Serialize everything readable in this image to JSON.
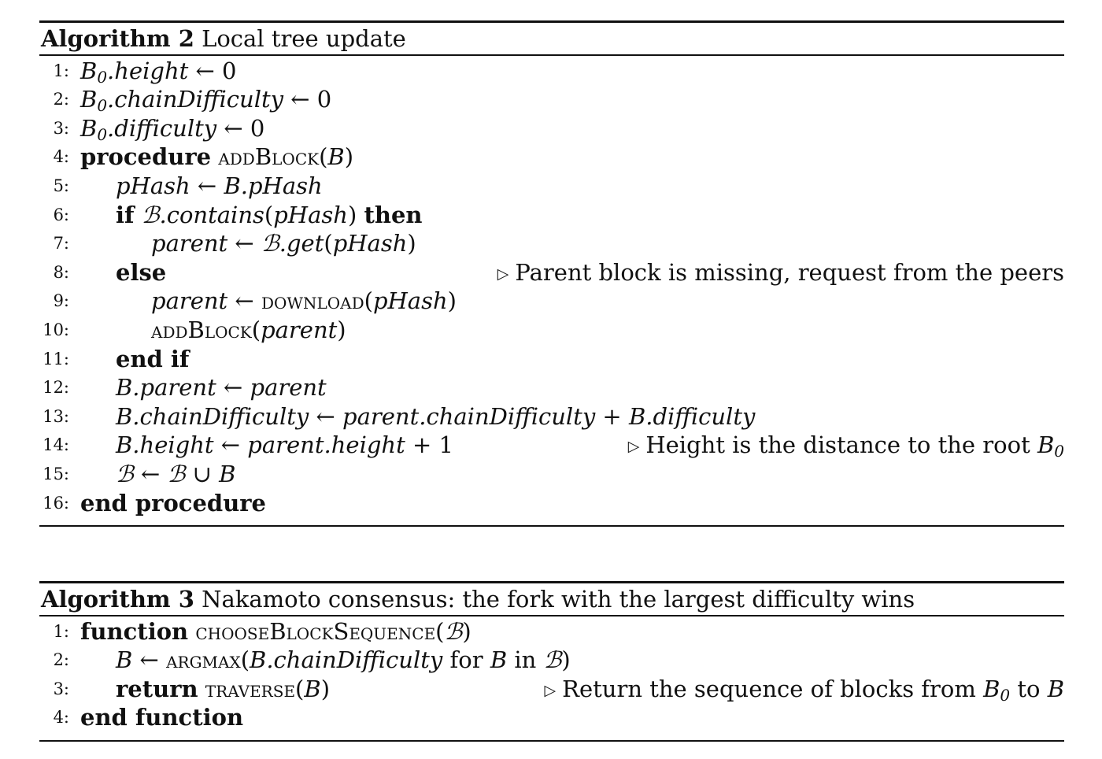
{
  "algorithm2": {
    "label": "Algorithm 2",
    "title": "Local tree update",
    "lines": [
      {
        "no": "1:",
        "text": "B0.height ← 0"
      },
      {
        "no": "2:",
        "text": "B0.chainDifficulty ← 0"
      },
      {
        "no": "3:",
        "text": "B0.difficulty ← 0"
      },
      {
        "no": "4:",
        "text": "procedure addBlock(B)"
      },
      {
        "no": "5:",
        "text": "pHash ← B.pHash"
      },
      {
        "no": "6:",
        "text": "if ℬ.contains(pHash) then"
      },
      {
        "no": "7:",
        "text": "parent ← ℬ.get(pHash)"
      },
      {
        "no": "8:",
        "text": "else",
        "comment": "Parent block is missing, request from the peers"
      },
      {
        "no": "9:",
        "text": "parent ← download(pHash)"
      },
      {
        "no": "10:",
        "text": "addBlock(parent)"
      },
      {
        "no": "11:",
        "text": "end if"
      },
      {
        "no": "12:",
        "text": "B.parent ← parent"
      },
      {
        "no": "13:",
        "text": "B.chainDifficulty ← parent.chainDifficulty + B.difficulty"
      },
      {
        "no": "14:",
        "text": "B.height ← parent.height + 1",
        "comment": "Height is the distance to the root B0"
      },
      {
        "no": "15:",
        "text": "ℬ ← ℬ ∪ B"
      },
      {
        "no": "16:",
        "text": "end procedure"
      }
    ]
  },
  "algorithm3": {
    "label": "Algorithm 3",
    "title": "Nakamoto consensus: the fork with the largest difficulty wins",
    "lines": [
      {
        "no": "1:",
        "text": "function chooseBlockSequence(ℬ)"
      },
      {
        "no": "2:",
        "text": "B ← argmax(B.chainDifficulty for B in ℬ)"
      },
      {
        "no": "3:",
        "text": "return traverse(B)",
        "comment": "Return the sequence of blocks from B0 to B"
      },
      {
        "no": "4:",
        "text": "end function"
      }
    ]
  }
}
